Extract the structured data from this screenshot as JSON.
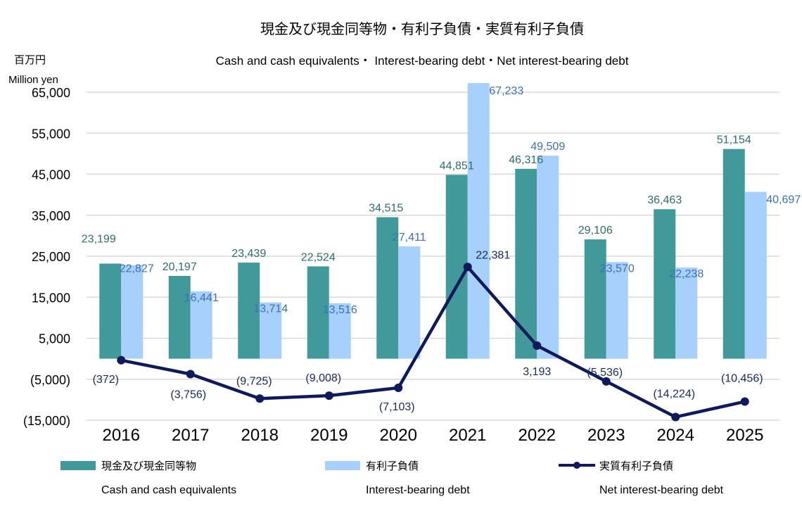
{
  "chart_data": {
    "type": "bar",
    "title": "現金及び現金同等物・有利子負債・実質有利子負債",
    "subtitle": "Cash and cash equivalents・ Interest-bearing debt・Net interest-bearing debt",
    "ylabel_jp": "百万円",
    "ylabel": "Million yen",
    "ylim": [
      -15000,
      65000
    ],
    "yticks": [
      65000,
      55000,
      45000,
      35000,
      25000,
      15000,
      5000,
      -5000,
      -15000
    ],
    "ytick_labels": [
      "65,000",
      "55,000",
      "45,000",
      "35,000",
      "25,000",
      "15,000",
      "5,000",
      "(5,000)",
      "(15,000)"
    ],
    "grid": true,
    "categories": [
      "2016",
      "2017",
      "2018",
      "2019",
      "2020",
      "2021",
      "2022",
      "2023",
      "2024",
      "2025"
    ],
    "series": [
      {
        "name": "現金及び現金同等物",
        "name_en": "Cash and cash equivalents",
        "type": "bar",
        "color": "#42999a",
        "label_color": "#2e6e6a",
        "values": [
          23199,
          20197,
          23439,
          22524,
          34515,
          44851,
          46316,
          29106,
          36463,
          51154
        ],
        "labels": [
          "23,199",
          "20,197",
          "23,439",
          "22,524",
          "34,515",
          "44,851",
          "46,316",
          "29,106",
          "36,463",
          "51,154"
        ]
      },
      {
        "name": "有利子負債",
        "name_en": "Interest-bearing debt",
        "type": "bar",
        "color": "#a7d0fc",
        "label_color": "#3d6fb8",
        "values": [
          22827,
          16441,
          13714,
          13516,
          27411,
          67233,
          49509,
          23570,
          22238,
          40697
        ],
        "labels": [
          "22,827",
          "16,441",
          "13,714",
          "13,516",
          "27,411",
          "67,233",
          "49,509",
          "23,570",
          "22,238",
          "40,697"
        ]
      },
      {
        "name": "実質有利子負債",
        "name_en": "Net interest-bearing debt",
        "type": "line",
        "color": "#0f1a5c",
        "label_color": "#1a2a5a",
        "values": [
          -372,
          -3756,
          -9725,
          -9008,
          -7103,
          22381,
          3193,
          -5536,
          -14224,
          -10456
        ],
        "labels": [
          "(372)",
          "(3,756)",
          "(9,725)",
          "(9,008)",
          "(7,103)",
          "22,381",
          "3,193",
          "(5,536)",
          "(14,224)",
          "(10,456)"
        ]
      }
    ],
    "legend_position": "bottom"
  }
}
